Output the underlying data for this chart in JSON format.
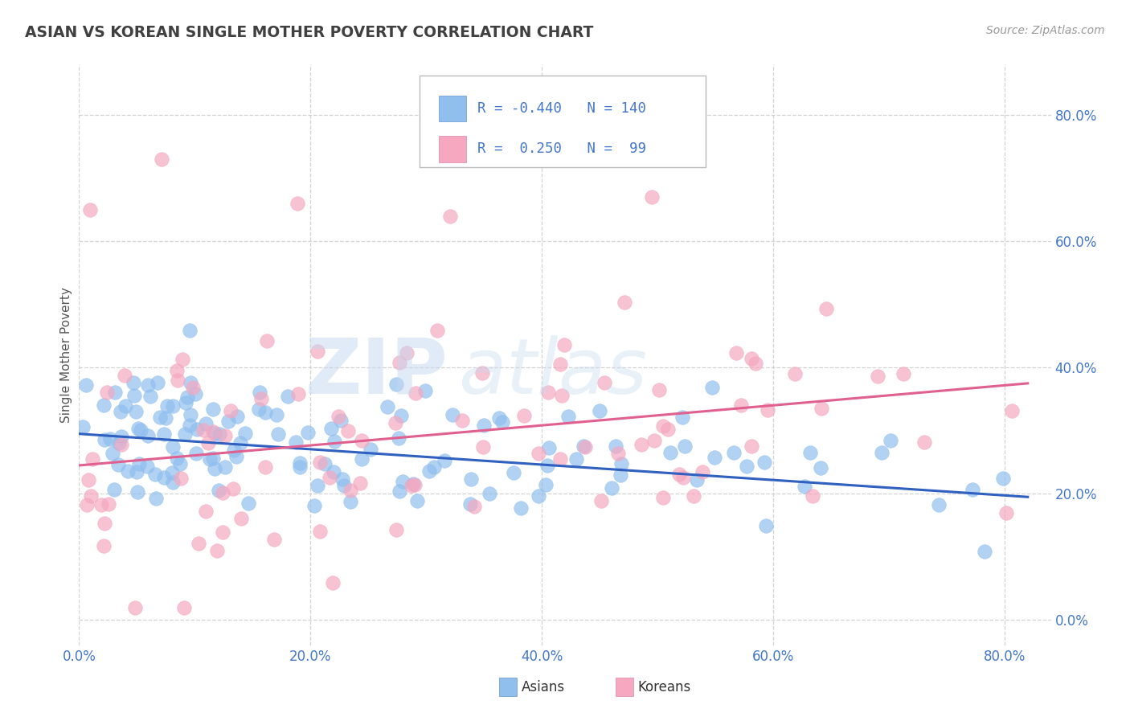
{
  "title": "ASIAN VS KOREAN SINGLE MOTHER POVERTY CORRELATION CHART",
  "source": "Source: ZipAtlas.com",
  "ylabel": "Single Mother Poverty",
  "ytick_values": [
    0.0,
    0.2,
    0.4,
    0.6,
    0.8
  ],
  "xtick_values": [
    0.0,
    0.2,
    0.4,
    0.6,
    0.8
  ],
  "xlim": [
    0.0,
    0.84
  ],
  "ylim": [
    -0.04,
    0.88
  ],
  "asian_R": -0.44,
  "asian_N": 140,
  "korean_R": 0.25,
  "korean_N": 99,
  "asian_color": "#90bfee",
  "korean_color": "#f5a8c0",
  "asian_line_color": "#3060c0",
  "korean_line_color": "#e06090",
  "legend_label_asian": "Asians",
  "legend_label_korean": "Koreans",
  "background_color": "#ffffff",
  "grid_color": "#c8c8c8",
  "title_color": "#404040",
  "axis_label_color": "#555555",
  "tick_label_color": "#4477cc",
  "legend_text_color": "#4477cc",
  "asian_line_start_y": 0.295,
  "asian_line_end_y": 0.195,
  "korean_line_start_y": 0.245,
  "korean_line_end_y": 0.375
}
